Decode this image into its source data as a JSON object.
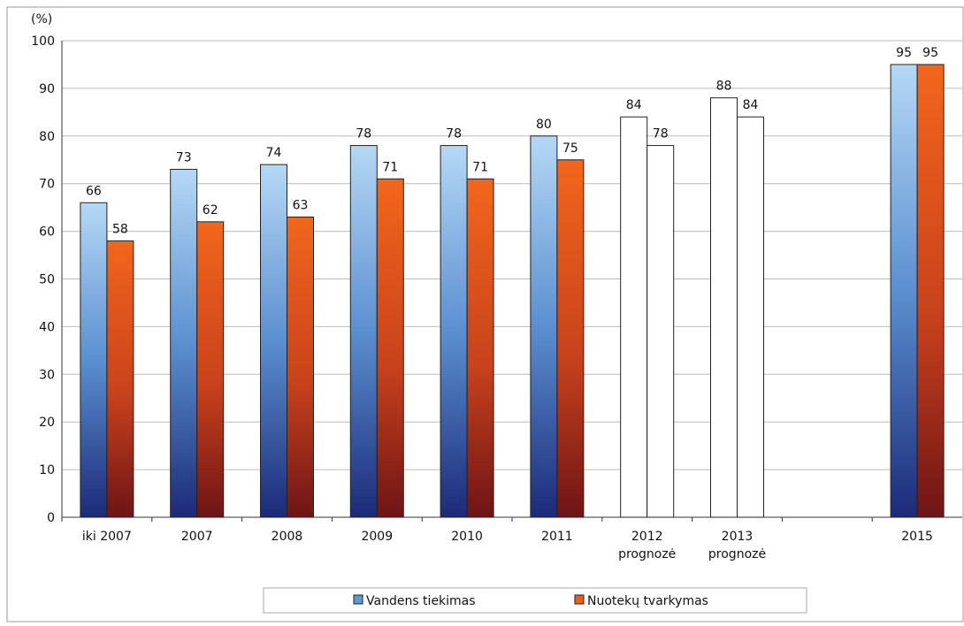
{
  "chart_data": {
    "type": "bar",
    "y_label": "(%)",
    "categories": [
      "iki 2007",
      "2007",
      "2008",
      "2009",
      "2010",
      "2011",
      "2012",
      "2013",
      null,
      "2015"
    ],
    "category_notes": [
      null,
      null,
      null,
      null,
      null,
      null,
      "prognozė",
      "prognozė",
      null,
      null
    ],
    "forecast": [
      false,
      false,
      false,
      false,
      false,
      false,
      true,
      true,
      false,
      false
    ],
    "forecast_color": "#ffffff",
    "series": [
      {
        "name": "Vandens tiekimas",
        "color": "#5b9bd5",
        "values": [
          66,
          73,
          74,
          78,
          78,
          80,
          84,
          88,
          null,
          95
        ]
      },
      {
        "name": "Nuotekų tvarkymas",
        "color": "#e8601c",
        "values": [
          58,
          62,
          63,
          71,
          71,
          75,
          78,
          84,
          null,
          95
        ]
      }
    ],
    "ylim": [
      0,
      100
    ],
    "yticks": [
      0,
      10,
      20,
      30,
      40,
      50,
      60,
      70,
      80,
      90,
      100
    ],
    "grid": true,
    "legend": "bottom"
  }
}
